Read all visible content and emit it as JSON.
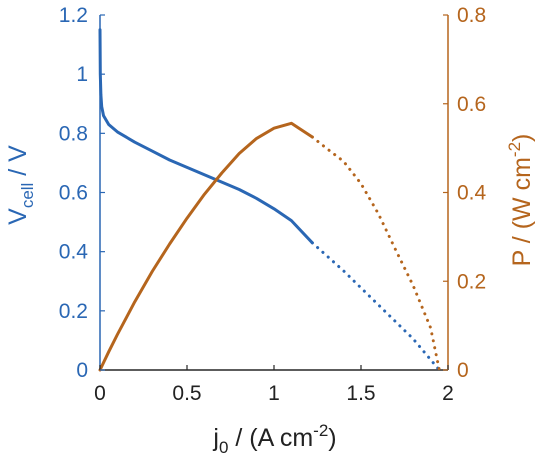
{
  "chart_data": {
    "type": "line",
    "xlim": [
      0,
      2
    ],
    "y_left_lim": [
      0,
      1.2
    ],
    "y_right_lim": [
      0,
      0.8
    ],
    "x_ticks": [
      "0",
      "0.5",
      "1",
      "1.5",
      "2"
    ],
    "y_left_ticks": [
      "0",
      "0.2",
      "0.4",
      "0.6",
      "0.8",
      "1",
      "1.2"
    ],
    "y_right_ticks": [
      "0",
      "0.2",
      "0.4",
      "0.6",
      "0.8"
    ],
    "xlabel": {
      "main": "j",
      "sub": "0",
      "rest": " / (A cm",
      "sup": "-2",
      "end": ")"
    },
    "ylabel_left": {
      "main": "V",
      "sub": "cell",
      "rest": " / V"
    },
    "ylabel_right": {
      "main": "P / (W cm",
      "sup": "-2",
      "end": ")"
    },
    "colors": {
      "voltage": "#2a67b4",
      "power": "#b5651d",
      "axis": "#262626"
    },
    "series": [
      {
        "axis": "left",
        "solid_until": 1.22,
        "x": [
          0,
          0.002,
          0.005,
          0.01,
          0.02,
          0.05,
          0.1,
          0.2,
          0.3,
          0.4,
          0.5,
          0.6,
          0.7,
          0.8,
          0.9,
          1.0,
          1.1,
          1.22,
          1.4,
          1.6,
          1.8,
          1.95
        ],
        "y": [
          1.15,
          1.0,
          0.93,
          0.89,
          0.86,
          0.83,
          0.805,
          0.77,
          0.74,
          0.71,
          0.685,
          0.66,
          0.635,
          0.61,
          0.58,
          0.545,
          0.505,
          0.43,
          0.335,
          0.22,
          0.105,
          0.0
        ]
      },
      {
        "axis": "right",
        "solid_until": 1.22,
        "x": [
          0,
          0.05,
          0.1,
          0.2,
          0.3,
          0.4,
          0.5,
          0.6,
          0.7,
          0.8,
          0.9,
          1.0,
          1.1,
          1.22,
          1.3,
          1.4,
          1.5,
          1.6,
          1.7,
          1.8,
          1.9,
          1.95
        ],
        "y": [
          0,
          0.041,
          0.08,
          0.154,
          0.222,
          0.284,
          0.342,
          0.396,
          0.444,
          0.488,
          0.522,
          0.545,
          0.556,
          0.525,
          0.5,
          0.47,
          0.42,
          0.352,
          0.27,
          0.19,
          0.095,
          0.0
        ]
      }
    ]
  }
}
